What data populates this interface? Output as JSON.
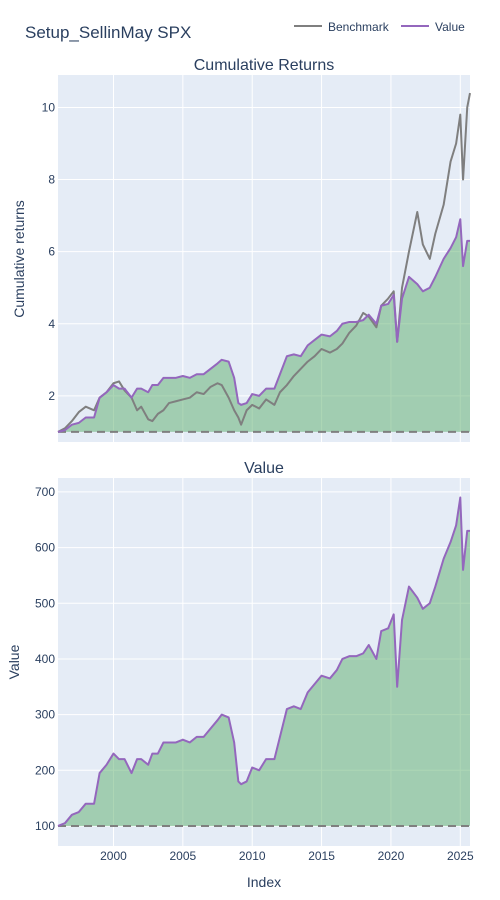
{
  "page": {
    "title": "Setup_SellinMay SPX"
  },
  "legend": {
    "items": [
      {
        "name": "Benchmark",
        "color": "#7f7f7f"
      },
      {
        "name": "Value",
        "color": "#9467bd"
      }
    ],
    "placement": "top-right",
    "orientation": "horizontal"
  },
  "chart_data": [
    {
      "type": "line",
      "title": "Cumulative Returns",
      "xlabel": "",
      "ylabel": "Cumulative returns",
      "xlim": [
        1996.0,
        2025.7
      ],
      "ylim": [
        0.72,
        10.9
      ],
      "yticks": [
        2,
        4,
        6,
        8,
        10
      ],
      "grid": true,
      "fill_color": "rgba(106,180,120,0.55)",
      "baseline": {
        "value": 1,
        "style": "dashed",
        "color": "#7f7f7f"
      },
      "series": [
        {
          "name": "Benchmark",
          "color": "#7f7f7f",
          "x": [
            1996.0,
            1996.5,
            1997.0,
            1997.5,
            1998.0,
            1998.6,
            1999.0,
            1999.5,
            2000.0,
            2000.4,
            2000.8,
            2001.3,
            2001.7,
            2002.0,
            2002.5,
            2002.8,
            2003.2,
            2003.6,
            2004.0,
            2004.5,
            2005.0,
            2005.5,
            2006.0,
            2006.5,
            2007.0,
            2007.5,
            2007.8,
            2008.3,
            2008.7,
            2009.0,
            2009.2,
            2009.6,
            2010.0,
            2010.5,
            2011.0,
            2011.6,
            2012.0,
            2012.5,
            2013.0,
            2013.5,
            2014.0,
            2014.5,
            2015.0,
            2015.6,
            2016.1,
            2016.5,
            2017.0,
            2017.5,
            2018.0,
            2018.4,
            2018.95,
            2019.3,
            2019.8,
            2020.2,
            2020.45,
            2020.8,
            2021.3,
            2021.9,
            2022.3,
            2022.8,
            2023.2,
            2023.8,
            2024.3,
            2024.7,
            2025.0,
            2025.2,
            2025.5,
            2025.7
          ],
          "values": [
            1.0,
            1.1,
            1.3,
            1.55,
            1.7,
            1.6,
            1.95,
            2.1,
            2.35,
            2.4,
            2.15,
            1.95,
            1.6,
            1.7,
            1.35,
            1.3,
            1.5,
            1.6,
            1.8,
            1.85,
            1.9,
            1.95,
            2.1,
            2.05,
            2.25,
            2.35,
            2.3,
            1.95,
            1.6,
            1.4,
            1.2,
            1.6,
            1.75,
            1.65,
            1.9,
            1.75,
            2.1,
            2.3,
            2.55,
            2.75,
            2.95,
            3.1,
            3.3,
            3.2,
            3.3,
            3.45,
            3.75,
            3.95,
            4.3,
            4.2,
            3.9,
            4.5,
            4.7,
            4.9,
            3.5,
            5.0,
            6.0,
            7.1,
            6.2,
            5.8,
            6.5,
            7.3,
            8.5,
            9.0,
            9.8,
            8.0,
            10.0,
            10.4
          ]
        },
        {
          "name": "Value",
          "color": "#9467bd",
          "x": [
            1996.0,
            1996.5,
            1997.0,
            1997.5,
            1998.0,
            1998.6,
            1999.0,
            1999.5,
            2000.0,
            2000.4,
            2000.8,
            2001.3,
            2001.7,
            2002.0,
            2002.5,
            2002.8,
            2003.2,
            2003.6,
            2004.0,
            2004.5,
            2005.0,
            2005.5,
            2006.0,
            2006.5,
            2007.0,
            2007.5,
            2007.8,
            2008.3,
            2008.7,
            2009.0,
            2009.2,
            2009.6,
            2010.0,
            2010.5,
            2011.0,
            2011.6,
            2012.0,
            2012.5,
            2013.0,
            2013.5,
            2014.0,
            2014.5,
            2015.0,
            2015.6,
            2016.1,
            2016.5,
            2017.0,
            2017.5,
            2018.0,
            2018.4,
            2018.95,
            2019.3,
            2019.8,
            2020.2,
            2020.45,
            2020.8,
            2021.3,
            2021.9,
            2022.3,
            2022.8,
            2023.2,
            2023.8,
            2024.3,
            2024.7,
            2025.0,
            2025.2,
            2025.5,
            2025.7
          ],
          "values": [
            1.0,
            1.05,
            1.2,
            1.25,
            1.4,
            1.4,
            1.95,
            2.1,
            2.3,
            2.2,
            2.2,
            1.95,
            2.2,
            2.2,
            2.1,
            2.3,
            2.3,
            2.5,
            2.5,
            2.5,
            2.55,
            2.5,
            2.6,
            2.6,
            2.75,
            2.9,
            3.0,
            2.95,
            2.5,
            1.8,
            1.75,
            1.8,
            2.05,
            2.0,
            2.2,
            2.2,
            2.6,
            3.1,
            3.15,
            3.1,
            3.4,
            3.55,
            3.7,
            3.65,
            3.8,
            4.0,
            4.05,
            4.05,
            4.1,
            4.25,
            4.0,
            4.5,
            4.55,
            4.8,
            3.5,
            4.7,
            5.3,
            5.1,
            4.9,
            5.0,
            5.3,
            5.8,
            6.1,
            6.4,
            6.9,
            5.6,
            6.3,
            6.3
          ]
        }
      ]
    },
    {
      "type": "area",
      "title": "Value",
      "xlabel": "Index",
      "ylabel": "Value",
      "xlim": [
        1996.0,
        2025.7
      ],
      "ylim": [
        64,
        725
      ],
      "yticks": [
        100,
        200,
        300,
        400,
        500,
        600,
        700
      ],
      "xticks": [
        2000,
        2005,
        2010,
        2015,
        2020,
        2025
      ],
      "grid": true,
      "fill_color": "rgba(106,180,120,0.55)",
      "baseline": {
        "value": 100,
        "style": "dashed",
        "color": "#7f7f7f"
      },
      "series": [
        {
          "name": "Value",
          "color": "#9467bd",
          "x": [
            1996.0,
            1996.5,
            1997.0,
            1997.5,
            1998.0,
            1998.6,
            1999.0,
            1999.5,
            2000.0,
            2000.4,
            2000.8,
            2001.3,
            2001.7,
            2002.0,
            2002.5,
            2002.8,
            2003.2,
            2003.6,
            2004.0,
            2004.5,
            2005.0,
            2005.5,
            2006.0,
            2006.5,
            2007.0,
            2007.5,
            2007.8,
            2008.3,
            2008.7,
            2009.0,
            2009.2,
            2009.6,
            2010.0,
            2010.5,
            2011.0,
            2011.6,
            2012.0,
            2012.5,
            2013.0,
            2013.5,
            2014.0,
            2014.5,
            2015.0,
            2015.6,
            2016.1,
            2016.5,
            2017.0,
            2017.5,
            2018.0,
            2018.4,
            2018.95,
            2019.3,
            2019.8,
            2020.2,
            2020.45,
            2020.8,
            2021.3,
            2021.9,
            2022.3,
            2022.8,
            2023.2,
            2023.8,
            2024.3,
            2024.7,
            2025.0,
            2025.2,
            2025.5,
            2025.7
          ],
          "values": [
            100,
            105,
            120,
            125,
            140,
            140,
            195,
            210,
            230,
            220,
            220,
            195,
            220,
            220,
            210,
            230,
            230,
            250,
            250,
            250,
            255,
            250,
            260,
            260,
            275,
            290,
            300,
            295,
            250,
            180,
            175,
            180,
            205,
            200,
            220,
            220,
            260,
            310,
            315,
            310,
            340,
            355,
            370,
            365,
            380,
            400,
            405,
            405,
            410,
            425,
            400,
            450,
            455,
            480,
            350,
            470,
            530,
            510,
            490,
            500,
            530,
            580,
            610,
            640,
            690,
            560,
            630,
            630
          ]
        }
      ]
    }
  ]
}
